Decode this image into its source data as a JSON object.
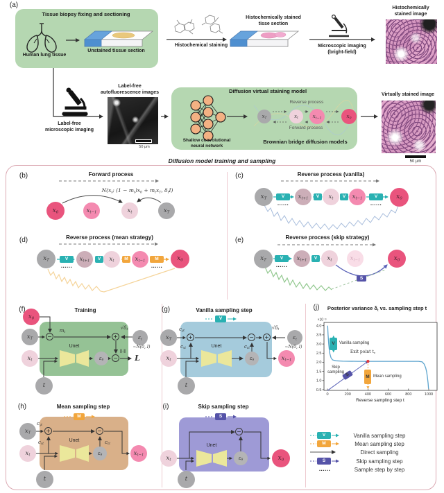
{
  "fig": {
    "badges": {
      "v": "V",
      "m": "M",
      "s": "S"
    },
    "dots": "......",
    "ops": {
      "plus": "+",
      "minus": "−"
    },
    "panel_a": {
      "letter": "(a)",
      "biopsy_box_title": "Tissue biopsy fixing and sectioning",
      "human_lung": "Human lung tissue",
      "unstained_section": "Unstained tissue section",
      "histochemical_staining": "Histochemical staining",
      "stained_section_l1": "Histochemically stained",
      "stained_section_l2": "tisse section",
      "microscopic_imaging_l1": "Microscopic imaging",
      "microscopic_imaging_l2": "(bright-field)",
      "stained_image_l1": "Histochemically",
      "stained_image_l2": "stained image",
      "labelfree_imaging_l1": "Label-free",
      "labelfree_imaging_l2": "microscopic imaging",
      "af_images_l1": "Label-free",
      "af_images_l2": "autofluorescence images",
      "scale_bar": "50 μm",
      "model_title": "Diffusion virtual staining model",
      "nn_l1": "Shallow convolutional",
      "nn_l2": "neural network",
      "reverse": "Reverse process",
      "forward": "Forward process",
      "bbdm": "Brownian bridge diffusion models",
      "virtual_image": "Virtually stained image",
      "chain": [
        "x_T",
        "x_t",
        "x_{t−1}",
        "x_0"
      ]
    },
    "frame_title": "Diffusion model training and sampling",
    "panel_b": {
      "letter": "(b)",
      "title": "Forward process",
      "formula": "N(x_t; (1 − m_t)x_0 + m_tx_T, δ_tI)",
      "nodes": [
        "x_0",
        "x_{t−1}",
        "x_t",
        "x_T"
      ]
    },
    "panel_c": {
      "letter": "(c)",
      "title": "Reverse process (vanilla)",
      "nodes": [
        "x_T",
        "x_{t+1}",
        "x_t",
        "x_{t−1}",
        "x_0"
      ]
    },
    "panel_d": {
      "letter": "(d)",
      "title": "Reverse process (mean strategy)",
      "nodes": [
        "x_T",
        "x_{t+1}",
        "x_t",
        "x_{t−1}",
        "x_0"
      ]
    },
    "panel_e": {
      "letter": "(e)",
      "title": "Reverse process (skip strategy)",
      "nodes": [
        "x_T",
        "x_{t+1}",
        "x_t",
        "x_{t−1}",
        "x_0"
      ]
    },
    "panel_f": {
      "letter": "(f)",
      "title": "Training",
      "x0": "x_0",
      "xT": "x_T",
      "xt": "x_t",
      "t": "t",
      "m_t": "m_t",
      "sqrt_delta": "√δ_t",
      "eps_t": "ε_t",
      "noise": "~N(0, I)",
      "unet": "Unet",
      "eps_theta": "ε_θ",
      "norm": "‖·‖",
      "loss": "L"
    },
    "panel_g": {
      "letter": "(g)",
      "title": "Vanilla sampling step",
      "c_yt": "c_{yt}",
      "c_xt": "c_{xt}",
      "c_et": "c_{εt}",
      "sqrt_delta": "√δ_t",
      "eps_t": "ε_t",
      "noise": "~N(0, I)",
      "unet": "Unet",
      "eps_theta": "ε_θ",
      "xT": "x_T",
      "xt": "x_t",
      "t": "t",
      "out": "x_{t−1}"
    },
    "panel_h": {
      "letter": "(h)",
      "title": "Mean sampling step",
      "c_yt": "c_{yt}",
      "c_xt": "c_{xt}",
      "c_et": "c_{εt}",
      "unet": "Unet",
      "eps_theta": "ε_θ",
      "xT": "x_T",
      "xt": "x_t",
      "t": "t",
      "out": "x_{t−1}"
    },
    "panel_i": {
      "letter": "(i)",
      "title": "Skip sampling step",
      "unet": "Unet",
      "eps_theta": "ε_θ",
      "xt": "x_t",
      "t": "t",
      "out": "x_0"
    },
    "panel_j": {
      "letter": "(j)",
      "title": "Posterior variance δ_t vs. sampling step t",
      "exp": "×10⁻³",
      "xlabel": "Reverse sampling step t",
      "vanilla": "Vanilla sampling",
      "exit": "Exit point t_e",
      "skip_l1": "Skip",
      "skip_l2": "sampling",
      "mean": "Mean sampling"
    },
    "legend": {
      "items": [
        {
          "label": "Vanilla sampling step"
        },
        {
          "label": "Mean sampling step"
        },
        {
          "label": "Direct sampling"
        },
        {
          "label": "Skip sampling step"
        },
        {
          "label": "Sample step by step"
        }
      ]
    },
    "colors": {
      "green_box": "#b5d7b1",
      "train_green": "#95c295",
      "vanilla_blue": "#a5cbdc",
      "mean_tan": "#d9b089",
      "skip_purple": "#9e9ad6",
      "teal": "#29b1b2",
      "orange": "#f2a63c",
      "purple": "#5553a8",
      "crimson": "#e9547d",
      "frame_pink": "#dba8b2"
    }
  },
  "chart_data": {
    "type": "line",
    "title": "Posterior variance δ_t vs. sampling step t",
    "xlabel": "Reverse sampling step t",
    "ylabel": "Posterior variance δ_t (×10⁻³)",
    "xlim": [
      0,
      1000
    ],
    "ylim_scaled": [
      0.5,
      4.0
    ],
    "units": "×10⁻³",
    "xticks": [
      0,
      200,
      400,
      600,
      800,
      1000
    ],
    "ytick_labels": [
      "0.5",
      "1.0",
      "1.5",
      "2.0",
      "2.5",
      "3.0",
      "3.5",
      "4.0"
    ],
    "curve": {
      "name": "posterior variance",
      "points": [
        [
          2,
          4.0
        ],
        [
          6,
          3.5
        ],
        [
          12,
          3.0
        ],
        [
          18,
          2.7
        ],
        [
          25,
          2.45
        ],
        [
          35,
          2.25
        ],
        [
          50,
          2.13
        ],
        [
          80,
          2.08
        ],
        [
          150,
          2.06
        ],
        [
          300,
          2.05
        ],
        [
          500,
          2.05
        ],
        [
          700,
          2.05
        ],
        [
          900,
          2.05
        ],
        [
          935,
          2.02
        ],
        [
          955,
          1.9
        ],
        [
          970,
          1.7
        ],
        [
          980,
          1.45
        ],
        [
          988,
          1.15
        ],
        [
          994,
          0.85
        ],
        [
          998,
          0.55
        ]
      ]
    },
    "exit_point": {
      "t": 400,
      "value": 2.05,
      "label": "Exit point t_e"
    },
    "skip_line": {
      "from": [
        0,
        0.45
      ],
      "to": [
        400,
        2.05
      ]
    },
    "mean_path": {
      "from": [
        400,
        2.05
      ],
      "to": [
        400,
        0.55
      ]
    },
    "vanilla_marker": {
      "t": 60,
      "value": 3.0,
      "arrow_up_to": 3.45,
      "arrow_down_to": 2.55
    },
    "annotations": [
      "Vanilla sampling",
      "Exit point t_e",
      "Skip sampling",
      "Mean sampling"
    ]
  }
}
